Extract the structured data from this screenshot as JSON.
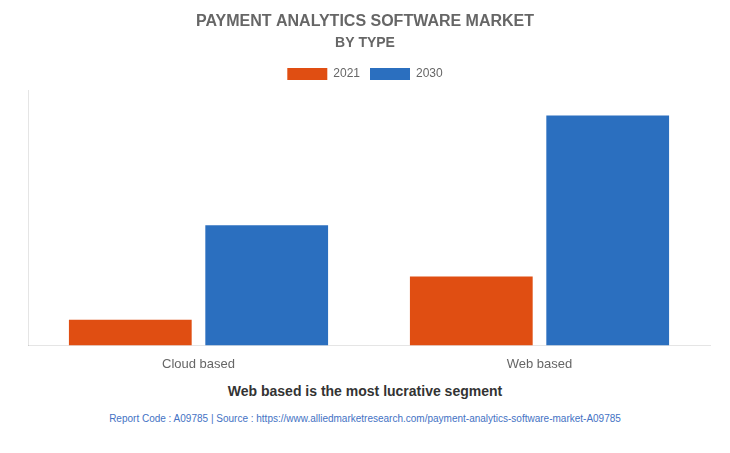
{
  "chart_data": {
    "type": "bar",
    "title": "PAYMENT ANALYTICS SOFTWARE MARKET",
    "subtitle": "BY TYPE",
    "categories": [
      "Cloud based",
      "Web based"
    ],
    "series": [
      {
        "name": "2021",
        "color": "#E04E12",
        "values": [
          0.1,
          0.27
        ]
      },
      {
        "name": "2030",
        "color": "#2B6FBF",
        "values": [
          0.47,
          0.9
        ]
      }
    ],
    "ylim": [
      0,
      1.0
    ],
    "grid": false,
    "legend": "top",
    "tick_labels": "x",
    "annotations": [
      "Web based is the most lucrative segment",
      "Report Code : A09785  |  Source : https://www.alliedmarketresearch.com/payment-analytics-software-market-A09785"
    ]
  }
}
